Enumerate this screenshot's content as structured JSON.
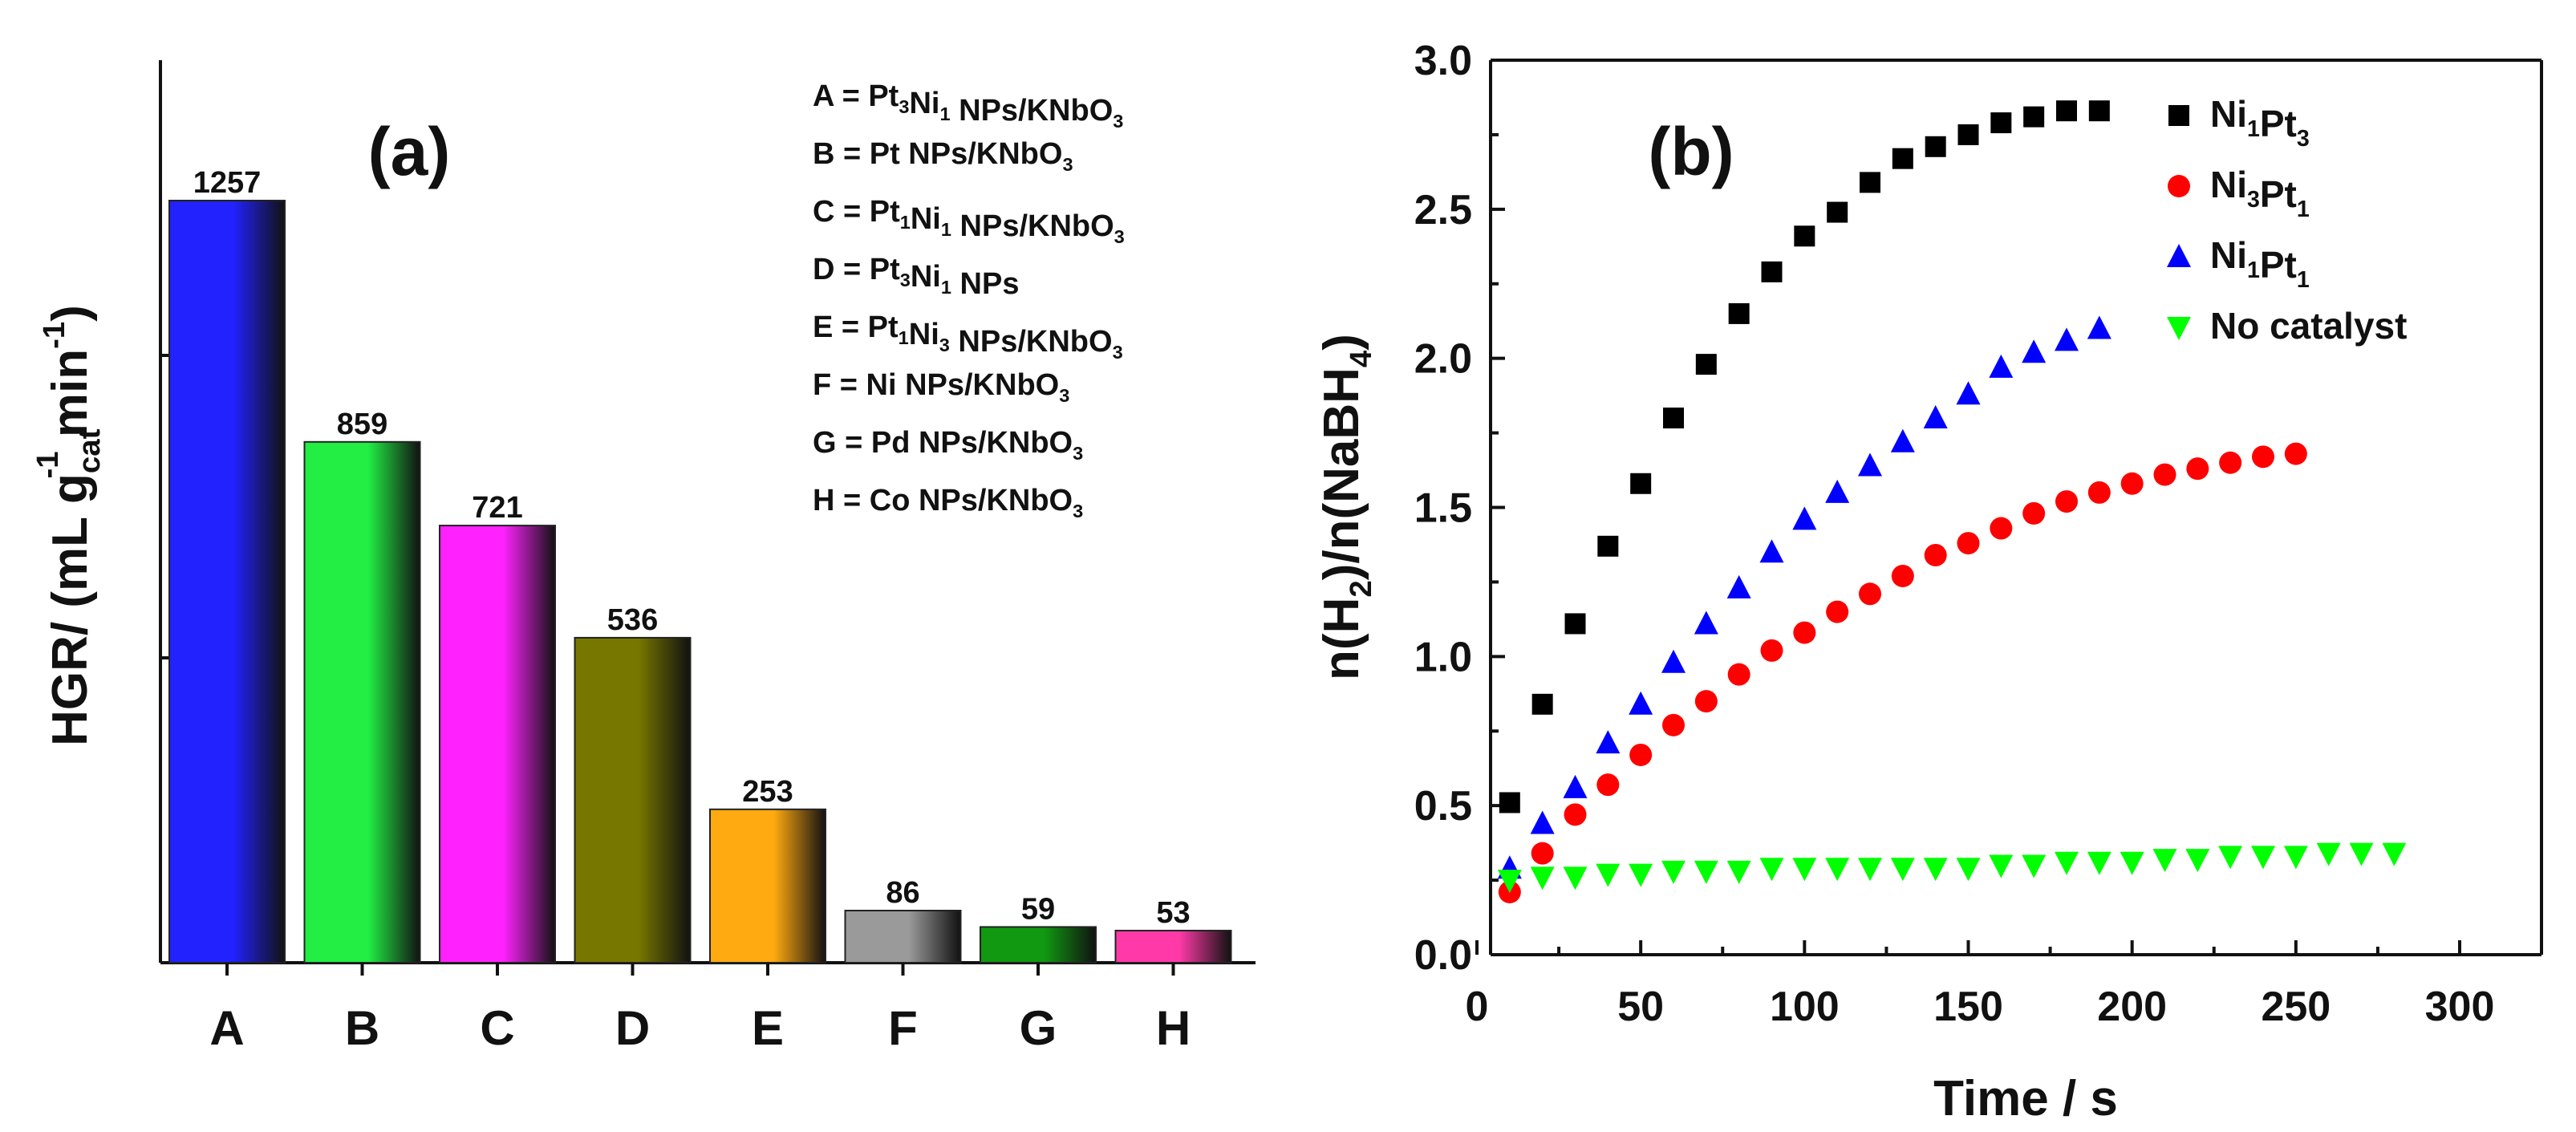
{
  "colors": {
    "bar_A": "#2222ff",
    "bar_B": "#22ee44",
    "bar_C": "#ff22ff",
    "bar_D": "#777700",
    "bar_E": "#ffaa11",
    "bar_F": "#9a9a9a",
    "bar_G": "#119911",
    "bar_H": "#ff3aa8",
    "series_Ni1Pt3": "#000000",
    "series_Ni3Pt1": "#ff0000",
    "series_Ni1Pt1": "#0000ff",
    "series_NoCat": "#00ff00"
  },
  "chart_data": [
    {
      "type": "bar",
      "panel_label": "(a)",
      "ylabel_parts": [
        "HGR/ (mL g",
        "cat",
        "-1",
        " min",
        "-1",
        ")"
      ],
      "categories": [
        "A",
        "B",
        "C",
        "D",
        "E",
        "F",
        "G",
        "H"
      ],
      "values": [
        1257,
        859,
        721,
        536,
        253,
        86,
        59,
        53
      ],
      "value_labels": [
        "1257",
        "859",
        "721",
        "536",
        "253",
        "86",
        "59",
        "53"
      ],
      "ylim": [
        0,
        1480
      ],
      "key_lines": [
        {
          "parts": [
            [
              "A = Pt",
              ""
            ],
            [
              "3",
              "sub"
            ],
            [
              "Ni",
              ""
            ],
            [
              "1",
              "sub"
            ],
            [
              " NPs/KNbO",
              ""
            ],
            [
              "3",
              "sub"
            ]
          ]
        },
        {
          "parts": [
            [
              "B = Pt NPs/KNbO",
              ""
            ],
            [
              "3",
              "sub"
            ]
          ]
        },
        {
          "parts": [
            [
              "C = Pt",
              ""
            ],
            [
              "1",
              "sub"
            ],
            [
              "Ni",
              ""
            ],
            [
              "1",
              "sub"
            ],
            [
              " NPs/KNbO",
              ""
            ],
            [
              "3",
              "sub"
            ]
          ]
        },
        {
          "parts": [
            [
              "D = Pt",
              ""
            ],
            [
              "3",
              "sub"
            ],
            [
              "Ni",
              ""
            ],
            [
              "1",
              "sub"
            ],
            [
              " NPs",
              ""
            ]
          ]
        },
        {
          "parts": [
            [
              "E = Pt",
              ""
            ],
            [
              "1",
              "sub"
            ],
            [
              "Ni",
              ""
            ],
            [
              "3",
              "sub"
            ],
            [
              " NPs/KNbO",
              ""
            ],
            [
              "3",
              "sub"
            ]
          ]
        },
        {
          "parts": [
            [
              "F = Ni NPs/KNbO",
              ""
            ],
            [
              "3",
              "sub"
            ]
          ]
        },
        {
          "parts": [
            [
              "G = Pd NPs/KNbO",
              ""
            ],
            [
              "3",
              "sub"
            ]
          ]
        },
        {
          "parts": [
            [
              "H = Co NPs/KNbO",
              ""
            ],
            [
              "3",
              "sub"
            ]
          ]
        }
      ]
    },
    {
      "type": "scatter",
      "panel_label": "(b)",
      "xlabel": "Time / s",
      "ylabel_parts": [
        "n(H",
        "2",
        ")/n(NaBH",
        "4",
        ")"
      ],
      "xlim": [
        0,
        320
      ],
      "ylim": [
        0,
        3.0
      ],
      "xticks": [
        0,
        50,
        100,
        150,
        200,
        250,
        300
      ],
      "xtick_labels": [
        "0",
        "50",
        "100",
        "150",
        "200",
        "250",
        "300"
      ],
      "yticks": [
        0,
        0.5,
        1.0,
        1.5,
        2.0,
        2.5,
        3.0
      ],
      "ytick_labels": [
        "0.0",
        "0.5",
        "1.0",
        "1.5",
        "2.0",
        "2.5",
        "3.0"
      ],
      "legend_position": "top-right",
      "series": [
        {
          "name": "Ni1Pt3",
          "legend_parts": [
            [
              "Ni",
              ""
            ],
            [
              "1",
              "sub"
            ],
            [
              "Pt",
              ""
            ],
            [
              "3",
              "sub"
            ]
          ],
          "marker": "square",
          "x": [
            10,
            20,
            30,
            40,
            50,
            60,
            70,
            80,
            90,
            100,
            110,
            120,
            130,
            140,
            150,
            160,
            170,
            180,
            190
          ],
          "y": [
            0.51,
            0.84,
            1.11,
            1.37,
            1.58,
            1.8,
            1.98,
            2.15,
            2.29,
            2.41,
            2.49,
            2.59,
            2.67,
            2.71,
            2.75,
            2.79,
            2.81,
            2.83,
            2.83
          ]
        },
        {
          "name": "Ni3Pt1",
          "legend_parts": [
            [
              "Ni",
              ""
            ],
            [
              "3",
              "sub"
            ],
            [
              "Pt",
              ""
            ],
            [
              "1",
              "sub"
            ]
          ],
          "marker": "circle",
          "x": [
            10,
            20,
            30,
            40,
            50,
            60,
            70,
            80,
            90,
            100,
            110,
            120,
            130,
            140,
            150,
            160,
            170,
            180,
            190,
            200,
            210,
            220,
            230,
            240,
            250
          ],
          "y": [
            0.21,
            0.34,
            0.47,
            0.57,
            0.67,
            0.77,
            0.85,
            0.94,
            1.02,
            1.08,
            1.15,
            1.21,
            1.27,
            1.34,
            1.38,
            1.43,
            1.48,
            1.52,
            1.55,
            1.58,
            1.61,
            1.63,
            1.65,
            1.67,
            1.68
          ]
        },
        {
          "name": "Ni1Pt1",
          "legend_parts": [
            [
              "Ni",
              ""
            ],
            [
              "1",
              "sub"
            ],
            [
              "Pt",
              ""
            ],
            [
              "1",
              "sub"
            ]
          ],
          "marker": "triangle-up",
          "x": [
            10,
            20,
            30,
            40,
            50,
            60,
            70,
            80,
            90,
            100,
            110,
            120,
            130,
            140,
            150,
            160,
            170,
            180,
            190
          ],
          "y": [
            0.29,
            0.44,
            0.56,
            0.71,
            0.84,
            0.98,
            1.11,
            1.23,
            1.35,
            1.46,
            1.55,
            1.64,
            1.72,
            1.8,
            1.88,
            1.97,
            2.02,
            2.06,
            2.1
          ]
        },
        {
          "name": "No catalyst",
          "legend_parts": [
            [
              "No catalyst",
              ""
            ]
          ],
          "marker": "triangle-down",
          "x": [
            10,
            20,
            30,
            40,
            50,
            60,
            70,
            80,
            90,
            100,
            110,
            120,
            130,
            140,
            150,
            160,
            170,
            180,
            190,
            200,
            210,
            220,
            230,
            240,
            250,
            260,
            270,
            280
          ],
          "y": [
            0.25,
            0.26,
            0.26,
            0.27,
            0.27,
            0.28,
            0.28,
            0.28,
            0.29,
            0.29,
            0.29,
            0.29,
            0.29,
            0.29,
            0.29,
            0.3,
            0.3,
            0.31,
            0.31,
            0.31,
            0.32,
            0.32,
            0.33,
            0.33,
            0.33,
            0.34,
            0.34,
            0.34
          ]
        }
      ]
    }
  ]
}
